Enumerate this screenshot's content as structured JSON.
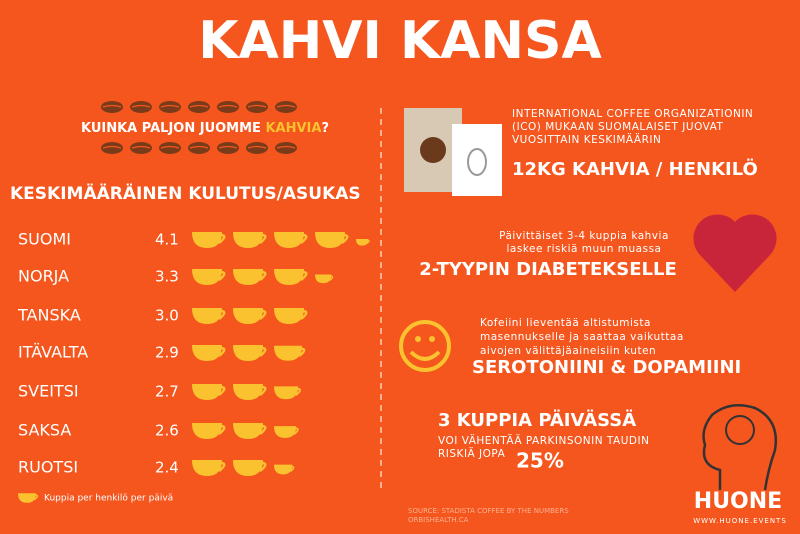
{
  "header": {
    "title": "KAHVI KANSA"
  },
  "question": {
    "before": "KUINKA PALJON JUOMME ",
    "highlight": "KAHVIA",
    "after": "?"
  },
  "consumption": {
    "heading": "KESKIMÄÄRÄINEN KULUTUS/ASUKAS",
    "countries": [
      "SUOMI",
      "NORJA",
      "TANSKA",
      "ITÄVALTA",
      "SVEITSI",
      "SAKSA",
      "RUOTSI"
    ],
    "values": [
      4.1,
      3.3,
      3.0,
      2.9,
      2.7,
      2.6,
      2.4
    ],
    "value_labels": [
      "4.1",
      "3.3",
      "3.0",
      "2.9",
      "2.7",
      "2.6",
      "2.4"
    ],
    "legend": "Kuppia per henkilö per päivä"
  },
  "facts": [
    {
      "lines": [
        "INTERNATIONAL COFFEE ORGANIZATIONIN",
        "(ICO) MUKAAN SUOMALAISET JUOVAT",
        "VUOSITTAIN KESKIMÄÄRIN"
      ],
      "headline": "12KG KAHVIA / HENKILÖ"
    },
    {
      "lines": [
        "Päivittäiset 3-4 kuppia kahvia",
        "laskee riskiä  muun muassa"
      ],
      "headline": "2-TYYPIN DIABETEKSELLE"
    },
    {
      "lines": [
        "Kofeiini lieventää altistumista",
        "masennukselle ja saattaa vaikuttaa",
        "aivojen välittäjäaineisiin kuten"
      ],
      "headline": "SEROTONIINI & DOPAMIINI"
    },
    {
      "headline": "3 KUPPIA PÄIVÄSSÄ",
      "lines": [
        "VOI VÄHENTÄÄ PARKINSONIN TAUDIN",
        "RISKIÄ JOPA"
      ],
      "percent": "25%"
    }
  ],
  "source": [
    "SOURCE: STADISTA COFFEE BY THE NUMBERS",
    "ORBISHEALTH.CA"
  ],
  "logo": {
    "name": "HUONE",
    "url": "WWW.HUONE.EVENTS"
  }
}
